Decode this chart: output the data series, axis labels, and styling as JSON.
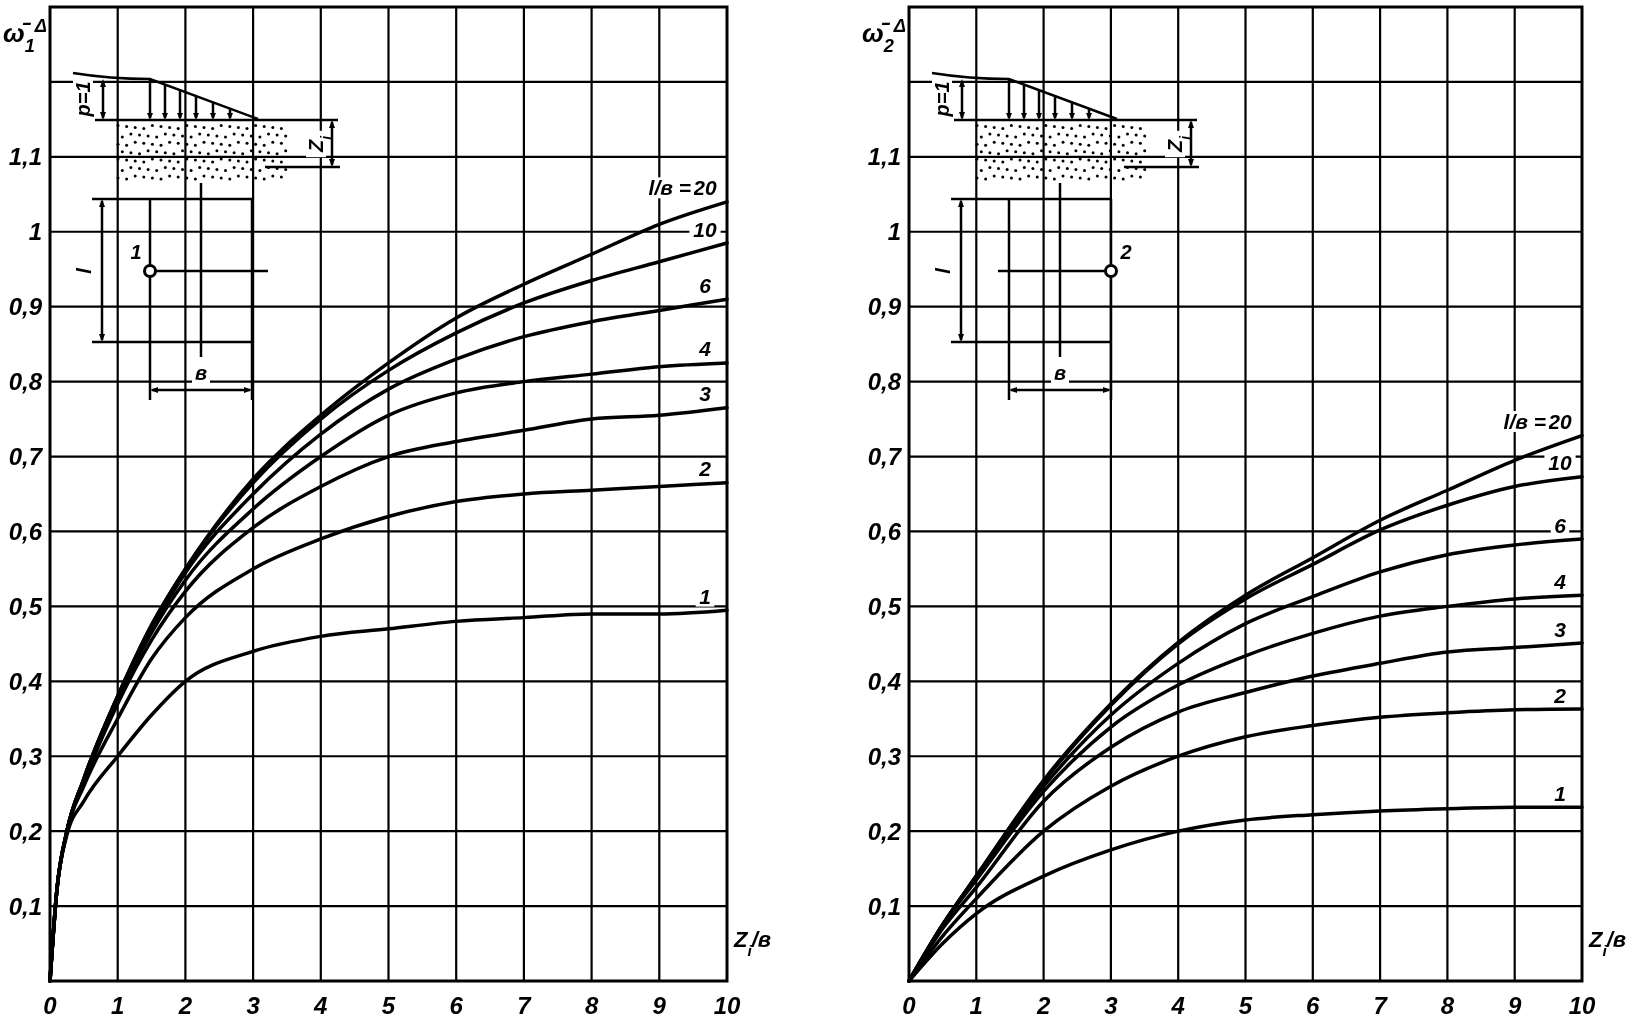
{
  "chart_data": [
    {
      "type": "line",
      "ylabel": "ω̄$_{1}$$^{Δ}$",
      "xlabel": "Z$_{i}$/в",
      "legend_title": "l/в =",
      "x": [
        0,
        0.1,
        0.25,
        0.5,
        1,
        1.5,
        2,
        3,
        4,
        5,
        6,
        7,
        8,
        9,
        10
      ],
      "xlim": [
        0,
        10
      ],
      "xticks": [
        0,
        1,
        2,
        3,
        4,
        5,
        6,
        7,
        8,
        9,
        10
      ],
      "ylim": [
        0,
        1.3
      ],
      "yticks": [
        {
          "value": 0.1,
          "label": "0,1"
        },
        {
          "value": 0.2,
          "label": "0,2"
        },
        {
          "value": 0.3,
          "label": "0,3"
        },
        {
          "value": 0.4,
          "label": "0,4"
        },
        {
          "value": 0.5,
          "label": "0,5"
        },
        {
          "value": 0.6,
          "label": "0,6"
        },
        {
          "value": 0.7,
          "label": "0,7"
        },
        {
          "value": 0.8,
          "label": "0,8"
        },
        {
          "value": 0.9,
          "label": "0,9"
        },
        {
          "value": 1,
          "label": "1"
        },
        {
          "value": 1.1,
          "label": "1,1"
        },
        {
          "value": 1.2,
          "label": null
        }
      ],
      "grid": true,
      "line_style": "solid",
      "series": [
        {
          "name": "1",
          "color": "#000000",
          "values": [
            0,
            0.12,
            0.195,
            0.24,
            0.3,
            0.355,
            0.4,
            0.44,
            0.46,
            0.47,
            0.48,
            0.485,
            0.49,
            0.49,
            0.495
          ]
        },
        {
          "name": "2",
          "color": "#000000",
          "values": [
            0,
            0.12,
            0.2,
            0.26,
            0.35,
            0.43,
            0.485,
            0.55,
            0.59,
            0.62,
            0.64,
            0.65,
            0.655,
            0.66,
            0.665
          ]
        },
        {
          "name": "3",
          "color": "#000000",
          "values": [
            0,
            0.12,
            0.2,
            0.265,
            0.37,
            0.455,
            0.52,
            0.605,
            0.66,
            0.7,
            0.72,
            0.735,
            0.75,
            0.755,
            0.765
          ]
        },
        {
          "name": "4",
          "color": "#000000",
          "values": [
            0,
            0.12,
            0.2,
            0.265,
            0.375,
            0.465,
            0.535,
            0.63,
            0.7,
            0.755,
            0.785,
            0.8,
            0.81,
            0.82,
            0.825
          ]
        },
        {
          "name": "6",
          "color": "#000000",
          "values": [
            0,
            0.12,
            0.2,
            0.27,
            0.38,
            0.47,
            0.545,
            0.65,
            0.73,
            0.79,
            0.83,
            0.86,
            0.88,
            0.895,
            0.91
          ]
        },
        {
          "name": "10",
          "color": "#000000",
          "values": [
            0,
            0.12,
            0.2,
            0.27,
            0.38,
            0.475,
            0.55,
            0.665,
            0.75,
            0.815,
            0.865,
            0.905,
            0.935,
            0.96,
            0.985
          ]
        },
        {
          "name": "20",
          "color": "#000000",
          "values": [
            0,
            0.12,
            0.2,
            0.27,
            0.38,
            0.475,
            0.55,
            0.67,
            0.755,
            0.825,
            0.885,
            0.93,
            0.97,
            1.01,
            1.04
          ]
        }
      ],
      "annotations": [
        "p=1",
        "Z$_{i}$",
        "l",
        "в",
        "1"
      ]
    },
    {
      "type": "line",
      "ylabel": "ω̄$_{2}$$^{Δ}$",
      "xlabel": "Z$_{i}$/в",
      "legend_title": "l/в =",
      "x": [
        0,
        0.5,
        1,
        2,
        3,
        4,
        5,
        6,
        7,
        8,
        9,
        10
      ],
      "xlim": [
        0,
        10
      ],
      "xticks": [
        0,
        1,
        2,
        3,
        4,
        5,
        6,
        7,
        8,
        9,
        10
      ],
      "ylim": [
        0,
        1.3
      ],
      "yticks": [
        {
          "value": 0.1,
          "label": "0,1"
        },
        {
          "value": 0.2,
          "label": "0,2"
        },
        {
          "value": 0.3,
          "label": "0,3"
        },
        {
          "value": 0.4,
          "label": "0,4"
        },
        {
          "value": 0.5,
          "label": "0,5"
        },
        {
          "value": 0.6,
          "label": "0,6"
        },
        {
          "value": 0.7,
          "label": "0,7"
        },
        {
          "value": 0.8,
          "label": "0,8"
        },
        {
          "value": 0.9,
          "label": "0,9"
        },
        {
          "value": 1,
          "label": "1"
        },
        {
          "value": 1.1,
          "label": "1,1"
        },
        {
          "value": 1.2,
          "label": null
        }
      ],
      "grid": true,
      "line_style": "solid",
      "series": [
        {
          "name": "1",
          "color": "#000000",
          "values": [
            0,
            0.05,
            0.09,
            0.14,
            0.175,
            0.2,
            0.215,
            0.222,
            0.227,
            0.23,
            0.232,
            0.232
          ]
        },
        {
          "name": "2",
          "color": "#000000",
          "values": [
            0,
            0.06,
            0.11,
            0.2,
            0.26,
            0.3,
            0.326,
            0.341,
            0.352,
            0.358,
            0.362,
            0.363
          ]
        },
        {
          "name": "3",
          "color": "#000000",
          "values": [
            0,
            0.07,
            0.125,
            0.24,
            0.312,
            0.359,
            0.385,
            0.407,
            0.424,
            0.439,
            0.445,
            0.451
          ]
        },
        {
          "name": "4",
          "color": "#000000",
          "values": [
            0,
            0.075,
            0.135,
            0.253,
            0.339,
            0.395,
            0.434,
            0.464,
            0.487,
            0.5,
            0.51,
            0.515
          ]
        },
        {
          "name": "6",
          "color": "#000000",
          "values": [
            0,
            0.075,
            0.14,
            0.26,
            0.355,
            0.424,
            0.477,
            0.513,
            0.546,
            0.569,
            0.582,
            0.59
          ]
        },
        {
          "name": "10",
          "color": "#000000",
          "values": [
            0,
            0.075,
            0.14,
            0.266,
            0.368,
            0.45,
            0.51,
            0.556,
            0.602,
            0.635,
            0.66,
            0.673
          ]
        },
        {
          "name": "20",
          "color": "#000000",
          "values": [
            0,
            0.075,
            0.14,
            0.268,
            0.37,
            0.452,
            0.515,
            0.565,
            0.615,
            0.655,
            0.695,
            0.728
          ]
        }
      ],
      "annotations": [
        "p=1",
        "Z$_{i}$",
        "l",
        "в",
        "2"
      ]
    }
  ]
}
